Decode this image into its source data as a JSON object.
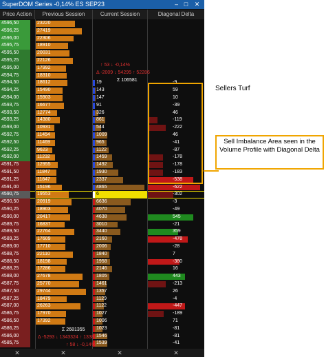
{
  "window": {
    "title": "SuperDOM Series -0,14% ES SEP23",
    "buttons": [
      "–",
      "□",
      "✕"
    ]
  },
  "columns": [
    "Price Action",
    "Previous Session",
    "Current Session",
    "Diagonal Delta"
  ],
  "stats": {
    "prev_session_text": "↑ 53 ↓ -0,14%",
    "prev_session_delta": "Δ -2009 ↓ 54295 ↑ 52286",
    "current_total": "Σ 106581",
    "bottom_total": "Σ 2681355",
    "bottom_delta": "Δ -5293 ↓ 1343324 ↑ 1338",
    "bottom_pct": "↑ 58 ↓ -0,14%"
  },
  "rows": [
    {
      "price": "4596,50",
      "prev": "23220",
      "prevPct": 0.7,
      "cur": "",
      "curPct": 0,
      "diag": "",
      "diagPct": 0,
      "priceColor": "#3a9a3a"
    },
    {
      "price": "4596,25",
      "prev": "27419",
      "prevPct": 0.82,
      "cur": "",
      "curPct": 0,
      "diag": "",
      "diagPct": 0,
      "priceColor": "#3a9a3a"
    },
    {
      "price": "4596,00",
      "prev": "22306",
      "prevPct": 0.67,
      "cur": "",
      "curPct": 0,
      "diag": "",
      "diagPct": 0,
      "priceColor": "#3a9a3a"
    },
    {
      "price": "4595,75",
      "prev": "18910",
      "prevPct": 0.57,
      "cur": "",
      "curPct": 0,
      "diag": "",
      "diagPct": 0,
      "priceColor": "#3a9a3a"
    },
    {
      "price": "4595,50",
      "prev": "20031",
      "prevPct": 0.6,
      "cur": "",
      "curPct": 0,
      "diag": "",
      "diagPct": 0,
      "priceColor": "#2f7a2f"
    },
    {
      "price": "4595,25",
      "prev": "22126",
      "prevPct": 0.66,
      "cur": "",
      "curPct": 0,
      "diag": "",
      "diagPct": 0,
      "priceColor": "#2f7a2f"
    },
    {
      "price": "4595,00",
      "prev": "17992",
      "prevPct": 0.54,
      "cur": "",
      "curPct": 0,
      "diag": "",
      "diagPct": 0,
      "priceColor": "#2f7a2f"
    },
    {
      "price": "4594,75",
      "prev": "18310",
      "prevPct": 0.55,
      "cur": "",
      "curPct": 0,
      "diag": "",
      "diagPct": 0,
      "priceColor": "#2f7a2f"
    },
    {
      "price": "4594,50",
      "prev": "18612",
      "prevPct": 0.56,
      "cur": "19",
      "curPct": 0.02,
      "diag": "-9",
      "diagPct": 0,
      "priceColor": "#2f7a2f"
    },
    {
      "price": "4594,25",
      "prev": "15490",
      "prevPct": 0.47,
      "cur": "143",
      "curPct": 0.05,
      "diag": "59",
      "diagPct": 0,
      "priceColor": "#2f7a2f"
    },
    {
      "price": "4594,00",
      "prev": "15903",
      "prevPct": 0.48,
      "cur": "147",
      "curPct": 0.05,
      "diag": "10",
      "diagPct": 0,
      "priceColor": "#2f7a2f"
    },
    {
      "price": "4593,75",
      "prev": "16677",
      "prevPct": 0.5,
      "cur": "91",
      "curPct": 0.03,
      "diag": "-39",
      "diagPct": 0,
      "priceColor": "#2f7a2f"
    },
    {
      "price": "4593,50",
      "prev": "12774",
      "prevPct": 0.38,
      "cur": "326",
      "curPct": 0.1,
      "diag": "46",
      "diagPct": 0,
      "priceColor": "#2f7a2f"
    },
    {
      "price": "4593,25",
      "prev": "14380",
      "prevPct": 0.43,
      "cur": "861",
      "curPct": 0.23,
      "diag": "-119",
      "diagPct": -0.18,
      "priceColor": "#2f7a2f"
    },
    {
      "price": "4593,00",
      "prev": "10931",
      "prevPct": 0.33,
      "cur": "544",
      "curPct": 0.15,
      "diag": "-222",
      "diagPct": -0.33,
      "priceColor": "#2f7a2f"
    },
    {
      "price": "4592,75",
      "prev": "11454",
      "prevPct": 0.34,
      "cur": "1009",
      "curPct": 0.26,
      "diag": "46",
      "diagPct": 0,
      "priceColor": "#2f7a2f"
    },
    {
      "price": "4592,50",
      "prev": "11469",
      "prevPct": 0.34,
      "cur": "965",
      "curPct": 0.25,
      "diag": "-41",
      "diagPct": 0,
      "priceColor": "#2f7a2f"
    },
    {
      "price": "4592,25",
      "prev": "9623",
      "prevPct": 0.29,
      "cur": "1122",
      "curPct": 0.29,
      "diag": "-87",
      "diagPct": 0,
      "priceColor": "#2f7a2f"
    },
    {
      "price": "4592,00",
      "prev": "11232",
      "prevPct": 0.34,
      "cur": "1459",
      "curPct": 0.36,
      "diag": "-178",
      "diagPct": -0.27,
      "priceColor": "#2f7a2f"
    },
    {
      "price": "4591,75",
      "prev": "12955",
      "prevPct": 0.39,
      "cur": "1492",
      "curPct": 0.37,
      "diag": "-178",
      "diagPct": -0.27,
      "priceColor": "#7a1f1f"
    },
    {
      "price": "4591,50",
      "prev": "11847",
      "prevPct": 0.36,
      "cur": "1930",
      "curPct": 0.47,
      "diag": "-183",
      "diagPct": -0.28,
      "priceColor": "#7a1f1f"
    },
    {
      "price": "4591,25",
      "prev": "11847",
      "prevPct": 0.36,
      "cur": "2337",
      "curPct": 0.56,
      "diag": "-538",
      "diagPct": -0.82,
      "priceColor": "#7a1f1f"
    },
    {
      "price": "4591,00",
      "prev": "15196",
      "prevPct": 0.46,
      "cur": "4865",
      "curPct": 0.95,
      "diag": "-622",
      "diagPct": -0.95,
      "priceColor": "#7a1f1f"
    },
    {
      "price": "4590,75",
      "prev": "19553",
      "prevPct": 0.59,
      "cur": "6",
      "curPct": 1.0,
      "diag": "-302",
      "diagPct": -0.46,
      "priceColor": "#3a3a3a",
      "current": true
    },
    {
      "price": "4590,50",
      "prev": "20919",
      "prevPct": 0.63,
      "cur": "6636",
      "curPct": 0.7,
      "diag": "-3",
      "diagPct": 0,
      "priceColor": "#7a1f1f"
    },
    {
      "price": "4590,25",
      "prev": "18903",
      "prevPct": 0.57,
      "cur": "4070",
      "curPct": 0.6,
      "diag": "-49",
      "diagPct": 0,
      "priceColor": "#7a1f1f"
    },
    {
      "price": "4590,00",
      "prev": "20417",
      "prevPct": 0.61,
      "cur": "4638",
      "curPct": 0.62,
      "diag": "545",
      "diagPct": 0.83,
      "priceColor": "#7a1f1f"
    },
    {
      "price": "4589,75",
      "prev": "16837",
      "prevPct": 0.51,
      "cur": "3010",
      "curPct": 0.45,
      "diag": "-21",
      "diagPct": 0,
      "priceColor": "#7a1f1f"
    },
    {
      "price": "4589,50",
      "prev": "22764",
      "prevPct": 0.68,
      "cur": "3440",
      "curPct": 0.5,
      "diag": "359",
      "diagPct": 0.55,
      "priceColor": "#7a1f1f"
    },
    {
      "price": "4589,25",
      "prev": "17609",
      "prevPct": 0.53,
      "cur": "2160",
      "curPct": 0.35,
      "diag": "-478",
      "diagPct": -0.73,
      "priceColor": "#7a1f1f"
    },
    {
      "price": "4589,00",
      "prev": "17710",
      "prevPct": 0.53,
      "cur": "2006",
      "curPct": 0.33,
      "diag": "-28",
      "diagPct": 0,
      "priceColor": "#7a1f1f"
    },
    {
      "price": "4588,75",
      "prev": "22110",
      "prevPct": 0.66,
      "cur": "1840",
      "curPct": 0.3,
      "diag": "7",
      "diagPct": 0,
      "priceColor": "#7a1f1f"
    },
    {
      "price": "4588,50",
      "prev": "18198",
      "prevPct": 0.55,
      "cur": "1958",
      "curPct": 0.32,
      "diag": "-380",
      "diagPct": -0.58,
      "priceColor": "#7a1f1f"
    },
    {
      "price": "4588,25",
      "prev": "17286",
      "prevPct": 0.52,
      "cur": "2146",
      "curPct": 0.35,
      "diag": "16",
      "diagPct": 0,
      "priceColor": "#7a1f1f"
    },
    {
      "price": "4588,00",
      "prev": "27678",
      "prevPct": 0.83,
      "cur": "1805",
      "curPct": 0.3,
      "diag": "443",
      "diagPct": 0.67,
      "priceColor": "#7a1f1f"
    },
    {
      "price": "4587,75",
      "prev": "25770",
      "prevPct": 0.77,
      "cur": "1461",
      "curPct": 0.25,
      "diag": "-213",
      "diagPct": -0.32,
      "priceColor": "#7a1f1f"
    },
    {
      "price": "4587,50",
      "prev": "29744",
      "prevPct": 0.89,
      "cur": "1357",
      "curPct": 0.23,
      "diag": "26",
      "diagPct": 0,
      "priceColor": "#7a1f1f"
    },
    {
      "price": "4587,25",
      "prev": "18479",
      "prevPct": 0.55,
      "cur": "1129",
      "curPct": 0.2,
      "diag": "-4",
      "diagPct": 0,
      "priceColor": "#7a1f1f"
    },
    {
      "price": "4587,00",
      "prev": "26263",
      "prevPct": 0.79,
      "cur": "1122",
      "curPct": 0.2,
      "diag": "-447",
      "diagPct": -0.68,
      "priceColor": "#7a1f1f"
    },
    {
      "price": "4586,75",
      "prev": "17970",
      "prevPct": 0.54,
      "cur": "1027",
      "curPct": 0.18,
      "diag": "-189",
      "diagPct": -0.29,
      "priceColor": "#7a1f1f"
    },
    {
      "price": "4586,50",
      "prev": "17392",
      "prevPct": 0.52,
      "cur": "1006",
      "curPct": 0.18,
      "diag": "71",
      "diagPct": 0,
      "priceColor": "#7a1f1f"
    },
    {
      "price": "4586,25",
      "prev": "",
      "prevPct": 0,
      "cur": "1023",
      "curPct": 0.18,
      "diag": "-81",
      "diagPct": 0,
      "priceColor": "#7a1f1f"
    },
    {
      "price": "4586,00",
      "prev": "",
      "prevPct": 0,
      "cur": "1546",
      "curPct": 0.26,
      "diag": "-81",
      "diagPct": 0,
      "priceColor": "#7a1f1f"
    },
    {
      "price": "4585,75",
      "prev": "",
      "prevPct": 0,
      "cur": "1539",
      "curPct": 0.26,
      "diag": "-41",
      "diagPct": 0,
      "priceColor": "#7a1f1f"
    }
  ],
  "annotations": {
    "sellers_turf": "Sellers Turf",
    "callout": "Sell Imbalance Area seen in the Volume Profile with Diagonal Delta"
  },
  "colors": {
    "prev_bar": "#d07a14",
    "cur_bar": "#8a5a1e",
    "current_price": "#f0e000",
    "neg_delta": "#c01818",
    "pos_delta": "#1f8a1f",
    "highlight_box": "#f0a500"
  }
}
